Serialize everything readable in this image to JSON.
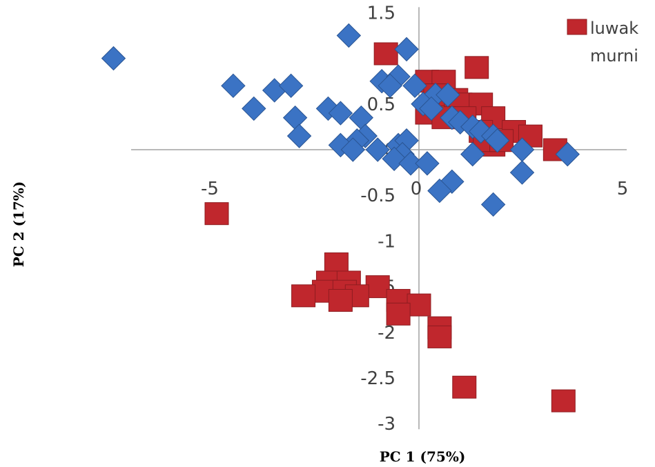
{
  "chart_data": {
    "type": "scatter",
    "title": "",
    "xlabel": "PC 1 (75%)",
    "ylabel": "PC 2 (17%)",
    "xlim": [
      -7.2,
      5.0
    ],
    "ylim": [
      -3.0,
      1.5
    ],
    "x_ticks": [
      "-5",
      "0",
      "5"
    ],
    "x_tick_values": [
      -5,
      0,
      5
    ],
    "y_ticks": [
      "1.5",
      "1",
      "0.5",
      "0",
      "-0.5",
      "-1",
      "-1.5",
      "-2",
      "-2.5",
      "-3"
    ],
    "y_tick_values": [
      1.5,
      1,
      0.5,
      0,
      -0.5,
      -1,
      -1.5,
      -2,
      -2.5,
      -3
    ],
    "grid": false,
    "legend_position": "top-right",
    "series": [
      {
        "name": "luwak",
        "marker": "square",
        "color": "#c0272d",
        "points": [
          [
            -0.8,
            1.05
          ],
          [
            0.2,
            0.75
          ],
          [
            0.6,
            0.75
          ],
          [
            1.4,
            0.9
          ],
          [
            0.4,
            0.6
          ],
          [
            0.9,
            0.55
          ],
          [
            1.0,
            0.5
          ],
          [
            1.5,
            0.5
          ],
          [
            0.2,
            0.4
          ],
          [
            0.6,
            0.35
          ],
          [
            1.1,
            0.35
          ],
          [
            1.8,
            0.35
          ],
          [
            1.5,
            0.2
          ],
          [
            2.3,
            0.2
          ],
          [
            2.7,
            0.15
          ],
          [
            3.3,
            0.0
          ],
          [
            1.8,
            0.05
          ],
          [
            1.6,
            0.1
          ],
          [
            2.0,
            0.1
          ],
          [
            -4.9,
            -0.7
          ],
          [
            -2.0,
            -1.25
          ],
          [
            -2.2,
            -1.45
          ],
          [
            -1.7,
            -1.45
          ],
          [
            -1.0,
            -1.5
          ],
          [
            -2.3,
            -1.55
          ],
          [
            -2.8,
            -1.6
          ],
          [
            -1.8,
            -1.55
          ],
          [
            -1.5,
            -1.6
          ],
          [
            -1.9,
            -1.65
          ],
          [
            -0.5,
            -1.65
          ],
          [
            0.0,
            -1.7
          ],
          [
            -0.5,
            -1.8
          ],
          [
            0.5,
            -1.95
          ],
          [
            0.5,
            -2.05
          ],
          [
            1.1,
            -2.6
          ],
          [
            3.5,
            -2.75
          ]
        ]
      },
      {
        "name": "murni",
        "marker": "diamond",
        "color": "#3b73c4",
        "points": [
          [
            -7.4,
            1.0
          ],
          [
            -1.7,
            1.25
          ],
          [
            -0.3,
            1.1
          ],
          [
            -4.5,
            0.7
          ],
          [
            -3.5,
            0.65
          ],
          [
            -3.1,
            0.7
          ],
          [
            -0.9,
            0.75
          ],
          [
            -0.5,
            0.8
          ],
          [
            -0.7,
            0.7
          ],
          [
            -0.1,
            0.7
          ],
          [
            0.4,
            0.6
          ],
          [
            0.7,
            0.6
          ],
          [
            0.1,
            0.5
          ],
          [
            0.3,
            0.45
          ],
          [
            -4.0,
            0.45
          ],
          [
            -2.2,
            0.45
          ],
          [
            -1.4,
            0.35
          ],
          [
            -3.0,
            0.35
          ],
          [
            -1.9,
            0.4
          ],
          [
            0.8,
            0.35
          ],
          [
            1.0,
            0.3
          ],
          [
            1.3,
            0.25
          ],
          [
            1.5,
            0.2
          ],
          [
            1.8,
            0.15
          ],
          [
            1.9,
            0.1
          ],
          [
            -2.9,
            0.15
          ],
          [
            -1.3,
            0.15
          ],
          [
            -1.5,
            0.1
          ],
          [
            -1.9,
            0.05
          ],
          [
            -1.6,
            0.0
          ],
          [
            -1.0,
            0.0
          ],
          [
            -0.5,
            0.05
          ],
          [
            -0.3,
            0.1
          ],
          [
            -0.4,
            -0.05
          ],
          [
            -0.6,
            -0.1
          ],
          [
            -0.2,
            -0.15
          ],
          [
            0.2,
            -0.15
          ],
          [
            1.3,
            -0.05
          ],
          [
            2.5,
            0.0
          ],
          [
            3.6,
            -0.05
          ],
          [
            2.5,
            -0.25
          ],
          [
            0.8,
            -0.35
          ],
          [
            0.5,
            -0.45
          ],
          [
            1.8,
            -0.6
          ]
        ]
      }
    ]
  }
}
